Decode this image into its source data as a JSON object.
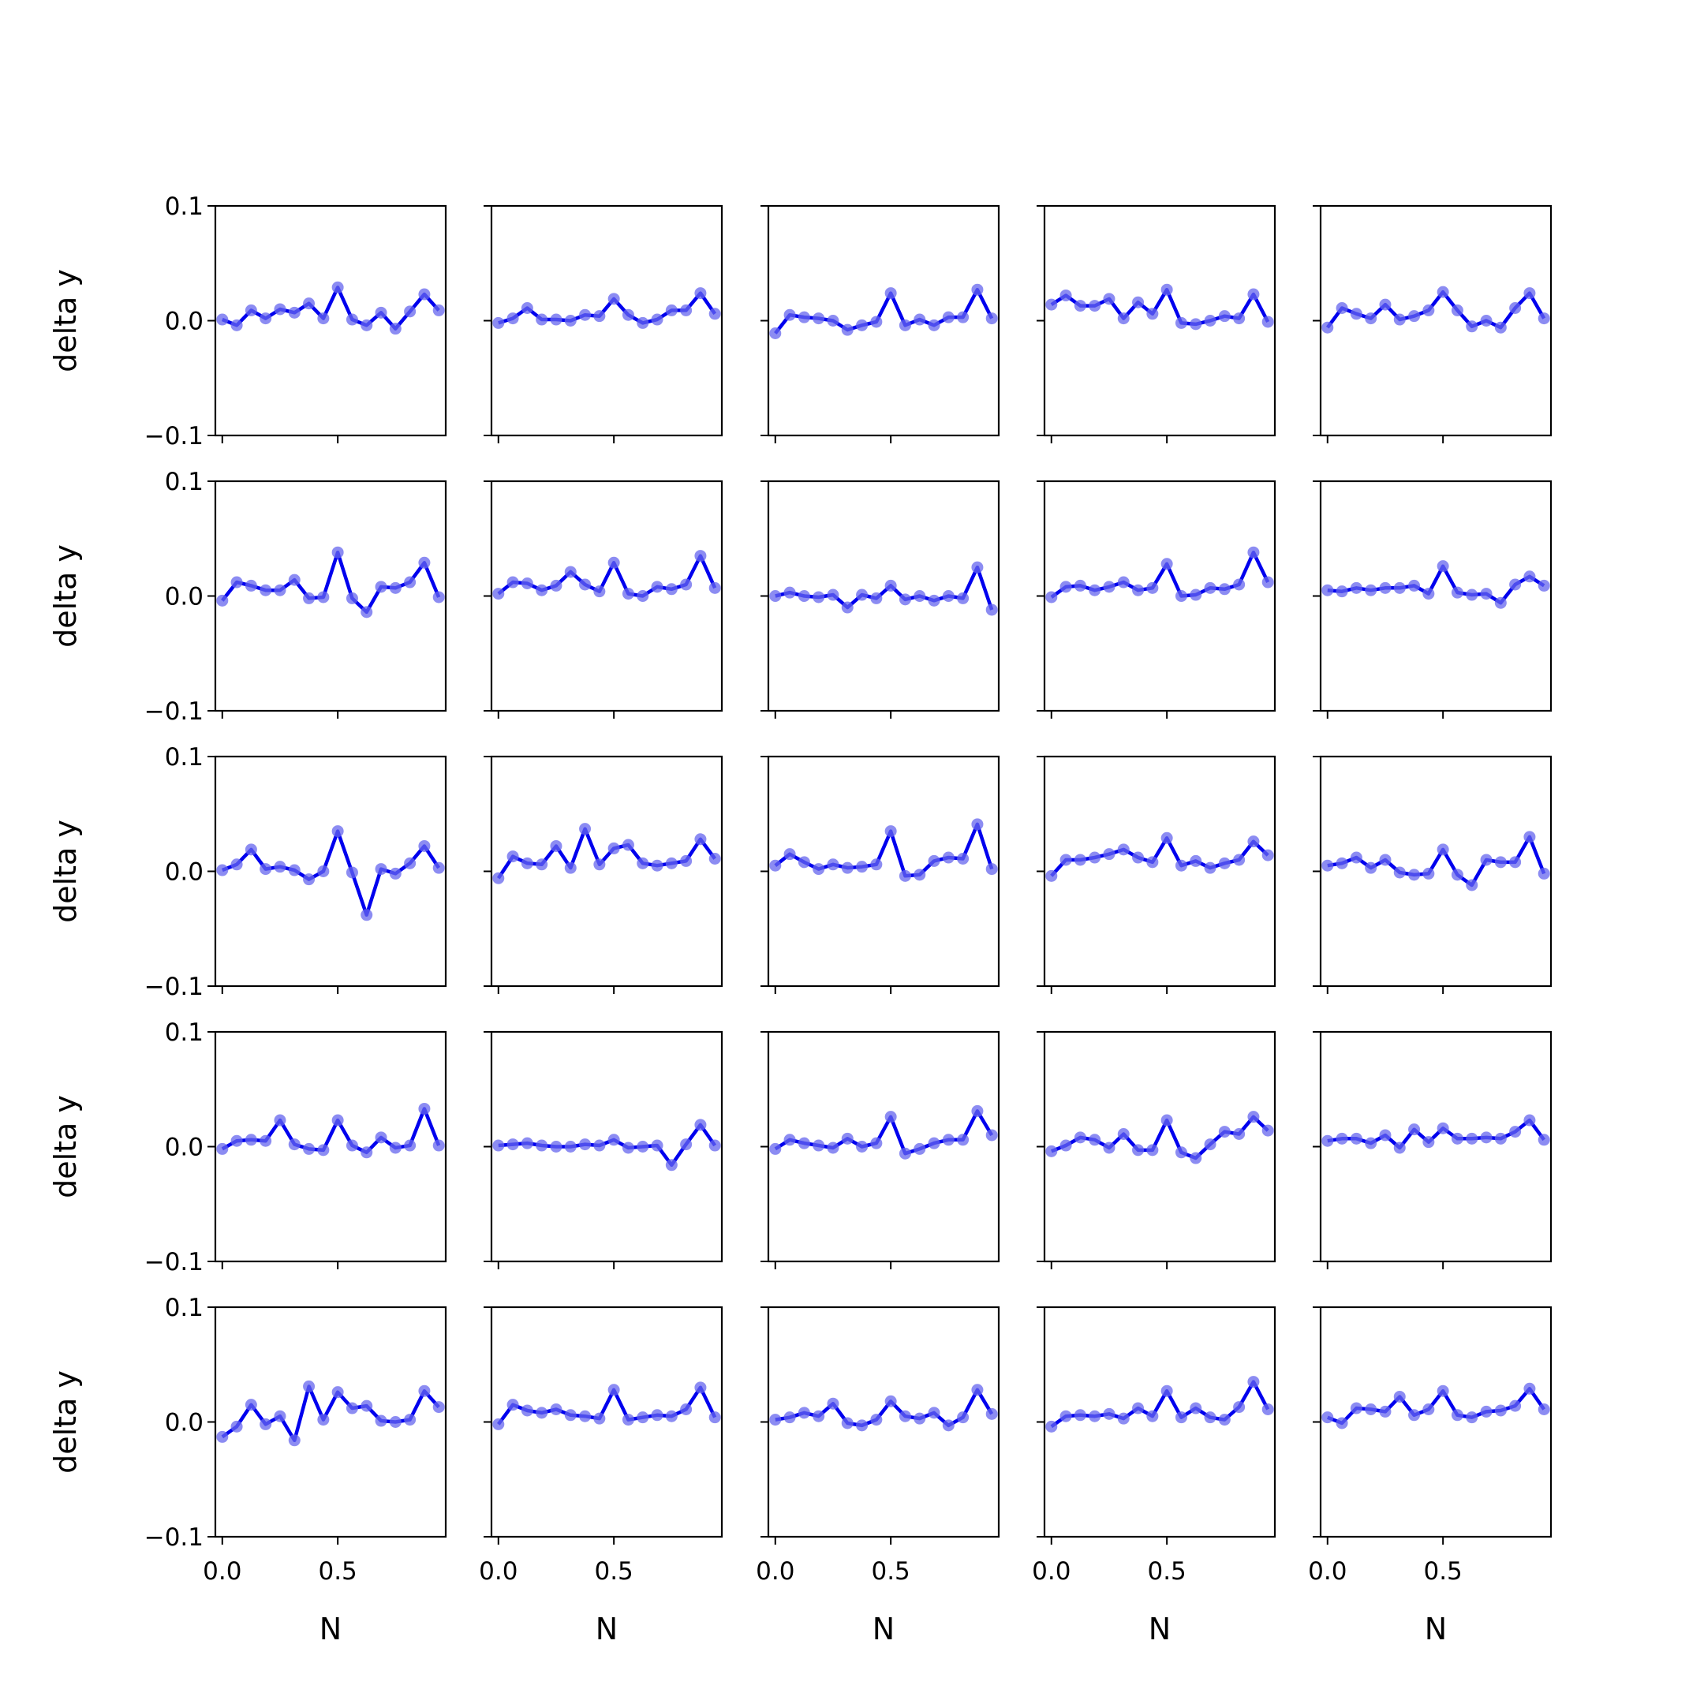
{
  "figure": {
    "layout": "5x5 grid of line plots, shared x and y axes",
    "ylabel": "delta y",
    "xlabel": "N",
    "x_tick_labels": [
      "0.0",
      "0.5"
    ],
    "y_tick_labels": [
      "−0.1",
      "0.0",
      "0.1"
    ],
    "line_color": "#0000ee",
    "marker_color": "#6666ee"
  },
  "chart_data": {
    "type": "line",
    "rows": 5,
    "cols": 5,
    "sharex": true,
    "sharey": true,
    "xlim": [
      -0.03,
      0.9675
    ],
    "ylim": [
      -0.1,
      0.1
    ],
    "xticks": [
      0.0,
      0.5
    ],
    "yticks": [
      -0.1,
      0.0,
      0.1
    ],
    "ylabel": "delta y",
    "xlabel": "N",
    "grid": false,
    "legend": false,
    "x": [
      0.0,
      0.0625,
      0.125,
      0.1875,
      0.25,
      0.3125,
      0.375,
      0.4375,
      0.5,
      0.5625,
      0.625,
      0.6875,
      0.75,
      0.8125,
      0.875,
      0.9375
    ],
    "panels": [
      {
        "row": 1,
        "col": 1,
        "y": [
          0.001,
          -0.004,
          0.009,
          0.002,
          0.01,
          0.007,
          0.015,
          0.002,
          0.029,
          0.001,
          -0.004,
          0.007,
          -0.007,
          0.008,
          0.023,
          0.009
        ]
      },
      {
        "row": 1,
        "col": 2,
        "y": [
          -0.002,
          0.002,
          0.011,
          0.001,
          0.001,
          0.0,
          0.005,
          0.004,
          0.019,
          0.005,
          -0.002,
          0.001,
          0.009,
          0.009,
          0.024,
          0.006
        ]
      },
      {
        "row": 1,
        "col": 3,
        "y": [
          -0.011,
          0.005,
          0.003,
          0.002,
          0.0,
          -0.008,
          -0.004,
          -0.001,
          0.024,
          -0.004,
          0.001,
          -0.004,
          0.003,
          0.003,
          0.027,
          0.002
        ]
      },
      {
        "row": 1,
        "col": 4,
        "y": [
          0.014,
          0.022,
          0.013,
          0.013,
          0.019,
          0.002,
          0.016,
          0.006,
          0.027,
          -0.002,
          -0.003,
          0.0,
          0.004,
          0.002,
          0.023,
          -0.001
        ]
      },
      {
        "row": 1,
        "col": 5,
        "y": [
          -0.006,
          0.011,
          0.006,
          0.002,
          0.014,
          0.001,
          0.004,
          0.009,
          0.025,
          0.009,
          -0.005,
          0.0,
          -0.006,
          0.011,
          0.024,
          0.002
        ]
      },
      {
        "row": 2,
        "col": 1,
        "y": [
          -0.004,
          0.012,
          0.009,
          0.005,
          0.005,
          0.014,
          -0.002,
          -0.001,
          0.038,
          -0.002,
          -0.014,
          0.008,
          0.007,
          0.012,
          0.029,
          -0.001
        ]
      },
      {
        "row": 2,
        "col": 2,
        "y": [
          0.002,
          0.012,
          0.011,
          0.005,
          0.009,
          0.021,
          0.01,
          0.004,
          0.029,
          0.002,
          0.0,
          0.008,
          0.006,
          0.01,
          0.035,
          0.007
        ]
      },
      {
        "row": 2,
        "col": 3,
        "y": [
          0.0,
          0.003,
          0.0,
          -0.001,
          0.001,
          -0.01,
          0.001,
          -0.002,
          0.009,
          -0.003,
          0.0,
          -0.004,
          0.0,
          -0.002,
          0.025,
          -0.012
        ]
      },
      {
        "row": 2,
        "col": 4,
        "y": [
          -0.001,
          0.008,
          0.009,
          0.005,
          0.008,
          0.012,
          0.005,
          0.007,
          0.028,
          0.0,
          0.001,
          0.007,
          0.006,
          0.01,
          0.038,
          0.012
        ]
      },
      {
        "row": 2,
        "col": 5,
        "y": [
          0.005,
          0.004,
          0.007,
          0.005,
          0.007,
          0.007,
          0.009,
          0.002,
          0.026,
          0.003,
          0.001,
          0.002,
          -0.006,
          0.01,
          0.017,
          0.009
        ]
      },
      {
        "row": 3,
        "col": 1,
        "y": [
          0.001,
          0.006,
          0.019,
          0.002,
          0.004,
          0.001,
          -0.007,
          0.0,
          0.035,
          -0.001,
          -0.038,
          0.002,
          -0.002,
          0.007,
          0.022,
          0.003
        ]
      },
      {
        "row": 3,
        "col": 2,
        "y": [
          -0.006,
          0.013,
          0.007,
          0.006,
          0.022,
          0.003,
          0.037,
          0.006,
          0.02,
          0.023,
          0.007,
          0.005,
          0.007,
          0.009,
          0.028,
          0.011
        ]
      },
      {
        "row": 3,
        "col": 3,
        "y": [
          0.005,
          0.015,
          0.008,
          0.002,
          0.006,
          0.003,
          0.004,
          0.006,
          0.035,
          -0.004,
          -0.003,
          0.009,
          0.012,
          0.011,
          0.041,
          0.002
        ]
      },
      {
        "row": 3,
        "col": 4,
        "y": [
          -0.004,
          0.01,
          0.01,
          0.012,
          0.015,
          0.019,
          0.012,
          0.008,
          0.029,
          0.005,
          0.009,
          0.003,
          0.007,
          0.01,
          0.026,
          0.014
        ]
      },
      {
        "row": 3,
        "col": 5,
        "y": [
          0.005,
          0.007,
          0.012,
          0.003,
          0.01,
          -0.001,
          -0.003,
          -0.002,
          0.019,
          -0.003,
          -0.012,
          0.01,
          0.008,
          0.008,
          0.03,
          -0.002
        ]
      },
      {
        "row": 4,
        "col": 1,
        "y": [
          -0.002,
          0.005,
          0.006,
          0.005,
          0.023,
          0.002,
          -0.002,
          -0.003,
          0.023,
          0.001,
          -0.005,
          0.008,
          -0.001,
          0.001,
          0.033,
          0.001
        ]
      },
      {
        "row": 4,
        "col": 2,
        "y": [
          0.001,
          0.002,
          0.003,
          0.001,
          0.0,
          0.0,
          0.002,
          0.001,
          0.006,
          -0.001,
          0.0,
          0.001,
          -0.016,
          0.002,
          0.019,
          0.001
        ]
      },
      {
        "row": 4,
        "col": 3,
        "y": [
          -0.002,
          0.006,
          0.003,
          0.001,
          -0.001,
          0.007,
          0.0,
          0.003,
          0.026,
          -0.006,
          -0.002,
          0.003,
          0.006,
          0.006,
          0.031,
          0.01
        ]
      },
      {
        "row": 4,
        "col": 4,
        "y": [
          -0.004,
          0.001,
          0.008,
          0.006,
          -0.001,
          0.011,
          -0.003,
          -0.003,
          0.023,
          -0.005,
          -0.01,
          0.002,
          0.013,
          0.011,
          0.026,
          0.014
        ]
      },
      {
        "row": 4,
        "col": 5,
        "y": [
          0.005,
          0.007,
          0.007,
          0.003,
          0.01,
          -0.001,
          0.015,
          0.004,
          0.016,
          0.007,
          0.007,
          0.008,
          0.007,
          0.013,
          0.023,
          0.006
        ]
      },
      {
        "row": 5,
        "col": 1,
        "y": [
          -0.013,
          -0.004,
          0.015,
          -0.002,
          0.005,
          -0.016,
          0.031,
          0.002,
          0.026,
          0.012,
          0.014,
          0.001,
          0.0,
          0.002,
          0.027,
          0.013
        ]
      },
      {
        "row": 5,
        "col": 2,
        "y": [
          -0.002,
          0.015,
          0.01,
          0.008,
          0.011,
          0.006,
          0.005,
          0.003,
          0.028,
          0.002,
          0.004,
          0.006,
          0.005,
          0.011,
          0.03,
          0.004
        ]
      },
      {
        "row": 5,
        "col": 3,
        "y": [
          0.002,
          0.004,
          0.008,
          0.005,
          0.016,
          -0.001,
          -0.003,
          0.002,
          0.018,
          0.005,
          0.003,
          0.008,
          -0.003,
          0.004,
          0.028,
          0.007
        ]
      },
      {
        "row": 5,
        "col": 4,
        "y": [
          -0.004,
          0.005,
          0.006,
          0.005,
          0.007,
          0.003,
          0.012,
          0.005,
          0.027,
          0.004,
          0.012,
          0.004,
          0.002,
          0.013,
          0.035,
          0.011
        ]
      },
      {
        "row": 5,
        "col": 5,
        "y": [
          0.004,
          -0.001,
          0.012,
          0.011,
          0.009,
          0.022,
          0.006,
          0.011,
          0.027,
          0.006,
          0.004,
          0.009,
          0.01,
          0.014,
          0.029,
          0.011
        ]
      }
    ]
  }
}
